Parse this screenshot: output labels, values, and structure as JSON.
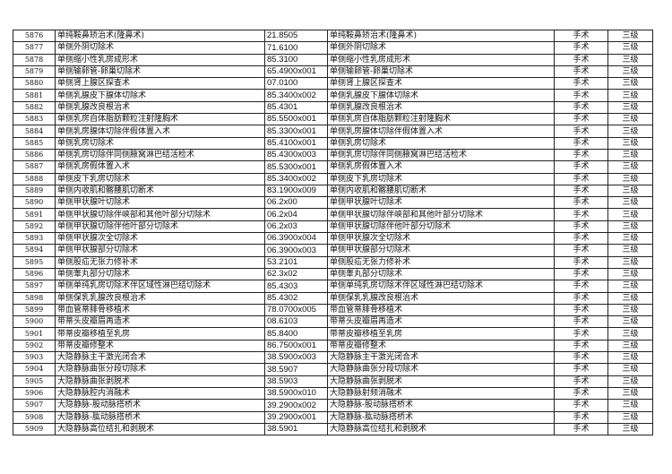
{
  "rows": [
    [
      "5876",
      "单纯鞍鼻矫治术(隆鼻术)",
      "21.8505",
      "单纯鞍鼻矫治术(隆鼻术)",
      "手术",
      "三级"
    ],
    [
      "5877",
      "单侧外阴切除术",
      "71.6100",
      "单侧外阴切除术",
      "手术",
      "三级"
    ],
    [
      "5878",
      "单侧缩小性乳房成形术",
      "85.3100",
      "单侧缩小性乳房成形术",
      "手术",
      "三级"
    ],
    [
      "5879",
      "单侧输卵管-卵巢切除术",
      "65.4900x001",
      "单侧输卵管-卵巢切除术",
      "手术",
      "三级"
    ],
    [
      "5880",
      "单侧肾上腺区探查术",
      "07.0100",
      "单侧肾上腺区探查术",
      "手术",
      "三级"
    ],
    [
      "5881",
      "单侧乳腺皮下腺体切除术",
      "85.3400x002",
      "单侧乳腺皮下腺体切除术",
      "手术",
      "三级"
    ],
    [
      "5882",
      "单侧乳腺改良根治术",
      "85.4301",
      "单侧乳腺改良根治术",
      "手术",
      "三级"
    ],
    [
      "5883",
      "单侧乳房自体脂肪颗粒注射隆胸术",
      "85.5500x001",
      "单侧乳房自体脂肪颗粒注射隆胸术",
      "手术",
      "三级"
    ],
    [
      "5884",
      "单侧乳房腺体切除伴假体置入术",
      "85.3300x001",
      "单侧乳房腺体切除伴假体置入术",
      "手术",
      "三级"
    ],
    [
      "5885",
      "单侧乳房切除术",
      "85.4100x001",
      "单侧乳房切除术",
      "手术",
      "三级"
    ],
    [
      "5886",
      "单侧乳房切除伴同侧腋窝淋巴结活检术",
      "85.4300x003",
      "单侧乳房切除伴同侧腋窝淋巴结活检术",
      "手术",
      "三级"
    ],
    [
      "5887",
      "单侧乳房假体置入术",
      "85.5300x001",
      "单侧乳房假体置入术",
      "手术",
      "三级"
    ],
    [
      "5888",
      "单侧皮下乳房切除术",
      "85.3400x002",
      "单侧皮下乳房切除术",
      "手术",
      "三级"
    ],
    [
      "5889",
      "单侧内收肌和髂腰肌切断术",
      "83.1900x009",
      "单侧内收肌和髂腰肌切断术",
      "手术",
      "三级"
    ],
    [
      "5890",
      "单侧甲状腺叶切除术",
      "06.2x00",
      "单侧甲状腺叶切除术",
      "手术",
      "三级"
    ],
    [
      "5891",
      "单侧甲状腺切除伴峡部和其他叶部分切除术",
      "06.2x04",
      "单侧甲状腺切除伴峡部和其他叶部分切除术",
      "手术",
      "三级"
    ],
    [
      "5892",
      "单侧甲状腺切除伴他叶部分切除术",
      "06.2x03",
      "单侧甲状腺切除伴他叶部分切除术",
      "手术",
      "三级"
    ],
    [
      "5893",
      "单侧甲状腺次全切除术",
      "06.3900x004",
      "单侧甲状腺次全切除术",
      "手术",
      "三级"
    ],
    [
      "5894",
      "单侧甲状腺部分切除术",
      "06.3900x003",
      "单侧甲状腺部分切除术",
      "手术",
      "三级"
    ],
    [
      "5895",
      "单侧股疝无张力修补术",
      "53.2101",
      "单侧股疝无张力修补术",
      "手术",
      "三级"
    ],
    [
      "5896",
      "单侧睾丸部分切除术",
      "62.3x02",
      "单侧睾丸部分切除术",
      "手术",
      "三级"
    ],
    [
      "5897",
      "单侧单纯乳房切除术伴区域性淋巴结切除术",
      "85.4303",
      "单侧单纯乳房切除术伴区域性淋巴结切除术",
      "手术",
      "三级"
    ],
    [
      "5898",
      "单侧保乳乳腺改良根治术",
      "85.4302",
      "单侧保乳乳腺改良根治术",
      "手术",
      "三级"
    ],
    [
      "5899",
      "带血管蒂腓骨移植术",
      "78.0700x005",
      "带血管蒂腓骨移植术",
      "手术",
      "三级"
    ],
    [
      "5900",
      "带蒂头皮瓣眉再造术",
      "08.6103",
      "带蒂头皮瓣眉再造术",
      "手术",
      "三级"
    ],
    [
      "5901",
      "带蒂皮瓣移植至乳房",
      "85.8400",
      "带蒂皮瓣移植至乳房",
      "手术",
      "三级"
    ],
    [
      "5902",
      "带蒂皮瓣修整术",
      "86.7500x001",
      "带蒂皮瓣修整术",
      "手术",
      "三级"
    ],
    [
      "5903",
      "大隐静脉主干激光闭合术",
      "38.5900x003",
      "大隐静脉主干激光闭合术",
      "手术",
      "三级"
    ],
    [
      "5904",
      "大隐静脉曲张分段切除术",
      "38.5907",
      "大隐静脉曲张分段切除术",
      "手术",
      "三级"
    ],
    [
      "5905",
      "大隐静脉曲张剥脱术",
      "38.5903",
      "大隐静脉曲张剥脱术",
      "手术",
      "三级"
    ],
    [
      "5906",
      "大隐静脉腔内消融术",
      "38.5900x010",
      "大隐静脉射频消融术",
      "手术",
      "三级"
    ],
    [
      "5907",
      "大隐静脉-股动脉搭桥术",
      "39.2900x002",
      "大隐静脉-股动脉搭桥术",
      "手术",
      "三级"
    ],
    [
      "5908",
      "大隐静脉-肱动脉搭桥术",
      "39.2900x001",
      "大隐静脉-肱动脉搭桥术",
      "手术",
      "三级"
    ],
    [
      "5909",
      "大隐静脉高位结扎和剥脱术",
      "38.5901",
      "大隐静脉高位结扎和剥脱术",
      "手术",
      "三级"
    ]
  ]
}
